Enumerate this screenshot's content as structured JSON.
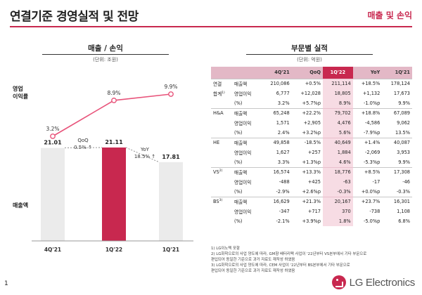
{
  "header": {
    "title": "연결기준 경영실적 및 전망",
    "section": "매출 및 손익"
  },
  "left": {
    "heading": "매출 / 손익",
    "unit": "(단위: 조원)",
    "opm_label_line1": "영업",
    "opm_label_line2": "이익률",
    "revenue_label": "매출액",
    "qoq_label": "QoQ",
    "qoq_value": "0.5% ↑",
    "yoy_label": "YoY",
    "yoy_value": "18.5% ↑"
  },
  "chart_data": {
    "type": "bar",
    "categories": [
      "4Q'21",
      "1Q'22",
      "1Q'21"
    ],
    "series": [
      {
        "name": "매출액",
        "values": [
          21.01,
          21.11,
          17.81
        ],
        "labels": [
          "21.01",
          "21.11",
          "17.81"
        ]
      },
      {
        "name": "영업이익률",
        "values": [
          3.2,
          8.9,
          9.9
        ],
        "labels": [
          "3.2%",
          "8.9%",
          "9.9%"
        ]
      }
    ],
    "colors": {
      "bar": "#ebebeb",
      "highlight_bar": "#c8284f",
      "line": "#e8537a"
    }
  },
  "right": {
    "heading": "부문별 실적",
    "unit": "(단위: 억원)",
    "columns": [
      "4Q'21",
      "QoQ",
      "1Q'22",
      "YoY",
      "1Q'21"
    ],
    "groups": [
      {
        "seg1": "연결",
        "seg2": "합계",
        "sup": "1)",
        "rows": [
          {
            "metric": "매출액",
            "v": [
              "210,086",
              "+0.5%",
              "211,114",
              "+18.5%",
              "178,124"
            ]
          },
          {
            "metric": "영업이익",
            "v": [
              "6,777",
              "+12,028",
              "18,805",
              "+1,132",
              "17,673"
            ]
          },
          {
            "metric": "(%)",
            "v": [
              "3.2%",
              "+5.7%p",
              "8.9%",
              "-1.0%p",
              "9.9%"
            ]
          }
        ]
      },
      {
        "seg1": "H&A",
        "sup": "",
        "rows": [
          {
            "metric": "매출액",
            "v": [
              "65,248",
              "+22.2%",
              "79,702",
              "+18.8%",
              "67,089"
            ]
          },
          {
            "metric": "영업이익",
            "v": [
              "1,571",
              "+2,905",
              "4,476",
              "-4,586",
              "9,062"
            ]
          },
          {
            "metric": "(%)",
            "v": [
              "2.4%",
              "+3.2%p",
              "5.6%",
              "-7.9%p",
              "13.5%"
            ]
          }
        ]
      },
      {
        "seg1": "HE",
        "sup": "",
        "rows": [
          {
            "metric": "매출액",
            "v": [
              "49,858",
              "-18.5%",
              "40,649",
              "+1.4%",
              "40,087"
            ]
          },
          {
            "metric": "영업이익",
            "v": [
              "1,627",
              "+257",
              "1,884",
              "-2,069",
              "3,953"
            ]
          },
          {
            "metric": "(%)",
            "v": [
              "3.3%",
              "+1.3%p",
              "4.6%",
              "-5.3%p",
              "9.9%"
            ]
          }
        ]
      },
      {
        "seg1": "VS",
        "sup": "2)",
        "rows": [
          {
            "metric": "매출액",
            "v": [
              "16,574",
              "+13.3%",
              "18,776",
              "+8.5%",
              "17,308"
            ]
          },
          {
            "metric": "영업이익",
            "v": [
              "-488",
              "+425",
              "-63",
              "-17",
              "-46"
            ]
          },
          {
            "metric": "(%)",
            "v": [
              "-2.9%",
              "+2.6%p",
              "-0.3%",
              "+0.0%p",
              "-0.3%"
            ]
          }
        ]
      },
      {
        "seg1": "BS",
        "sup": "3)",
        "rows": [
          {
            "metric": "매출액",
            "v": [
              "16,629",
              "+21.3%",
              "20,167",
              "+23.7%",
              "16,301"
            ]
          },
          {
            "metric": "영업이익",
            "v": [
              "-347",
              "+717",
              "370",
              "-738",
              "1,108"
            ]
          },
          {
            "metric": "(%)",
            "v": [
              "-2.1%",
              "+3.9%p",
              "1.8%",
              "-5.0%p",
              "6.8%"
            ]
          }
        ]
      }
    ]
  },
  "notes": [
    "1) LG이노텍 포함",
    "2) LG화학으로의 사업 양도에 따라, GM향 배터리팩 사업이 '22년부터 VS본부에서 기타 부문으로",
    "   편입되어 동일한 기준으로 과거 자료도 재작성 하였음",
    "3) LG화학으로의 사업 양도에 따라, CEM 사업이 '22년부터 BS본부에서 기타 부문으로",
    "   편입되어 동일한 기준으로 과거 자료도 재작성 하였음"
  ],
  "footer": {
    "page": "1",
    "brand": "LG Electronics"
  }
}
